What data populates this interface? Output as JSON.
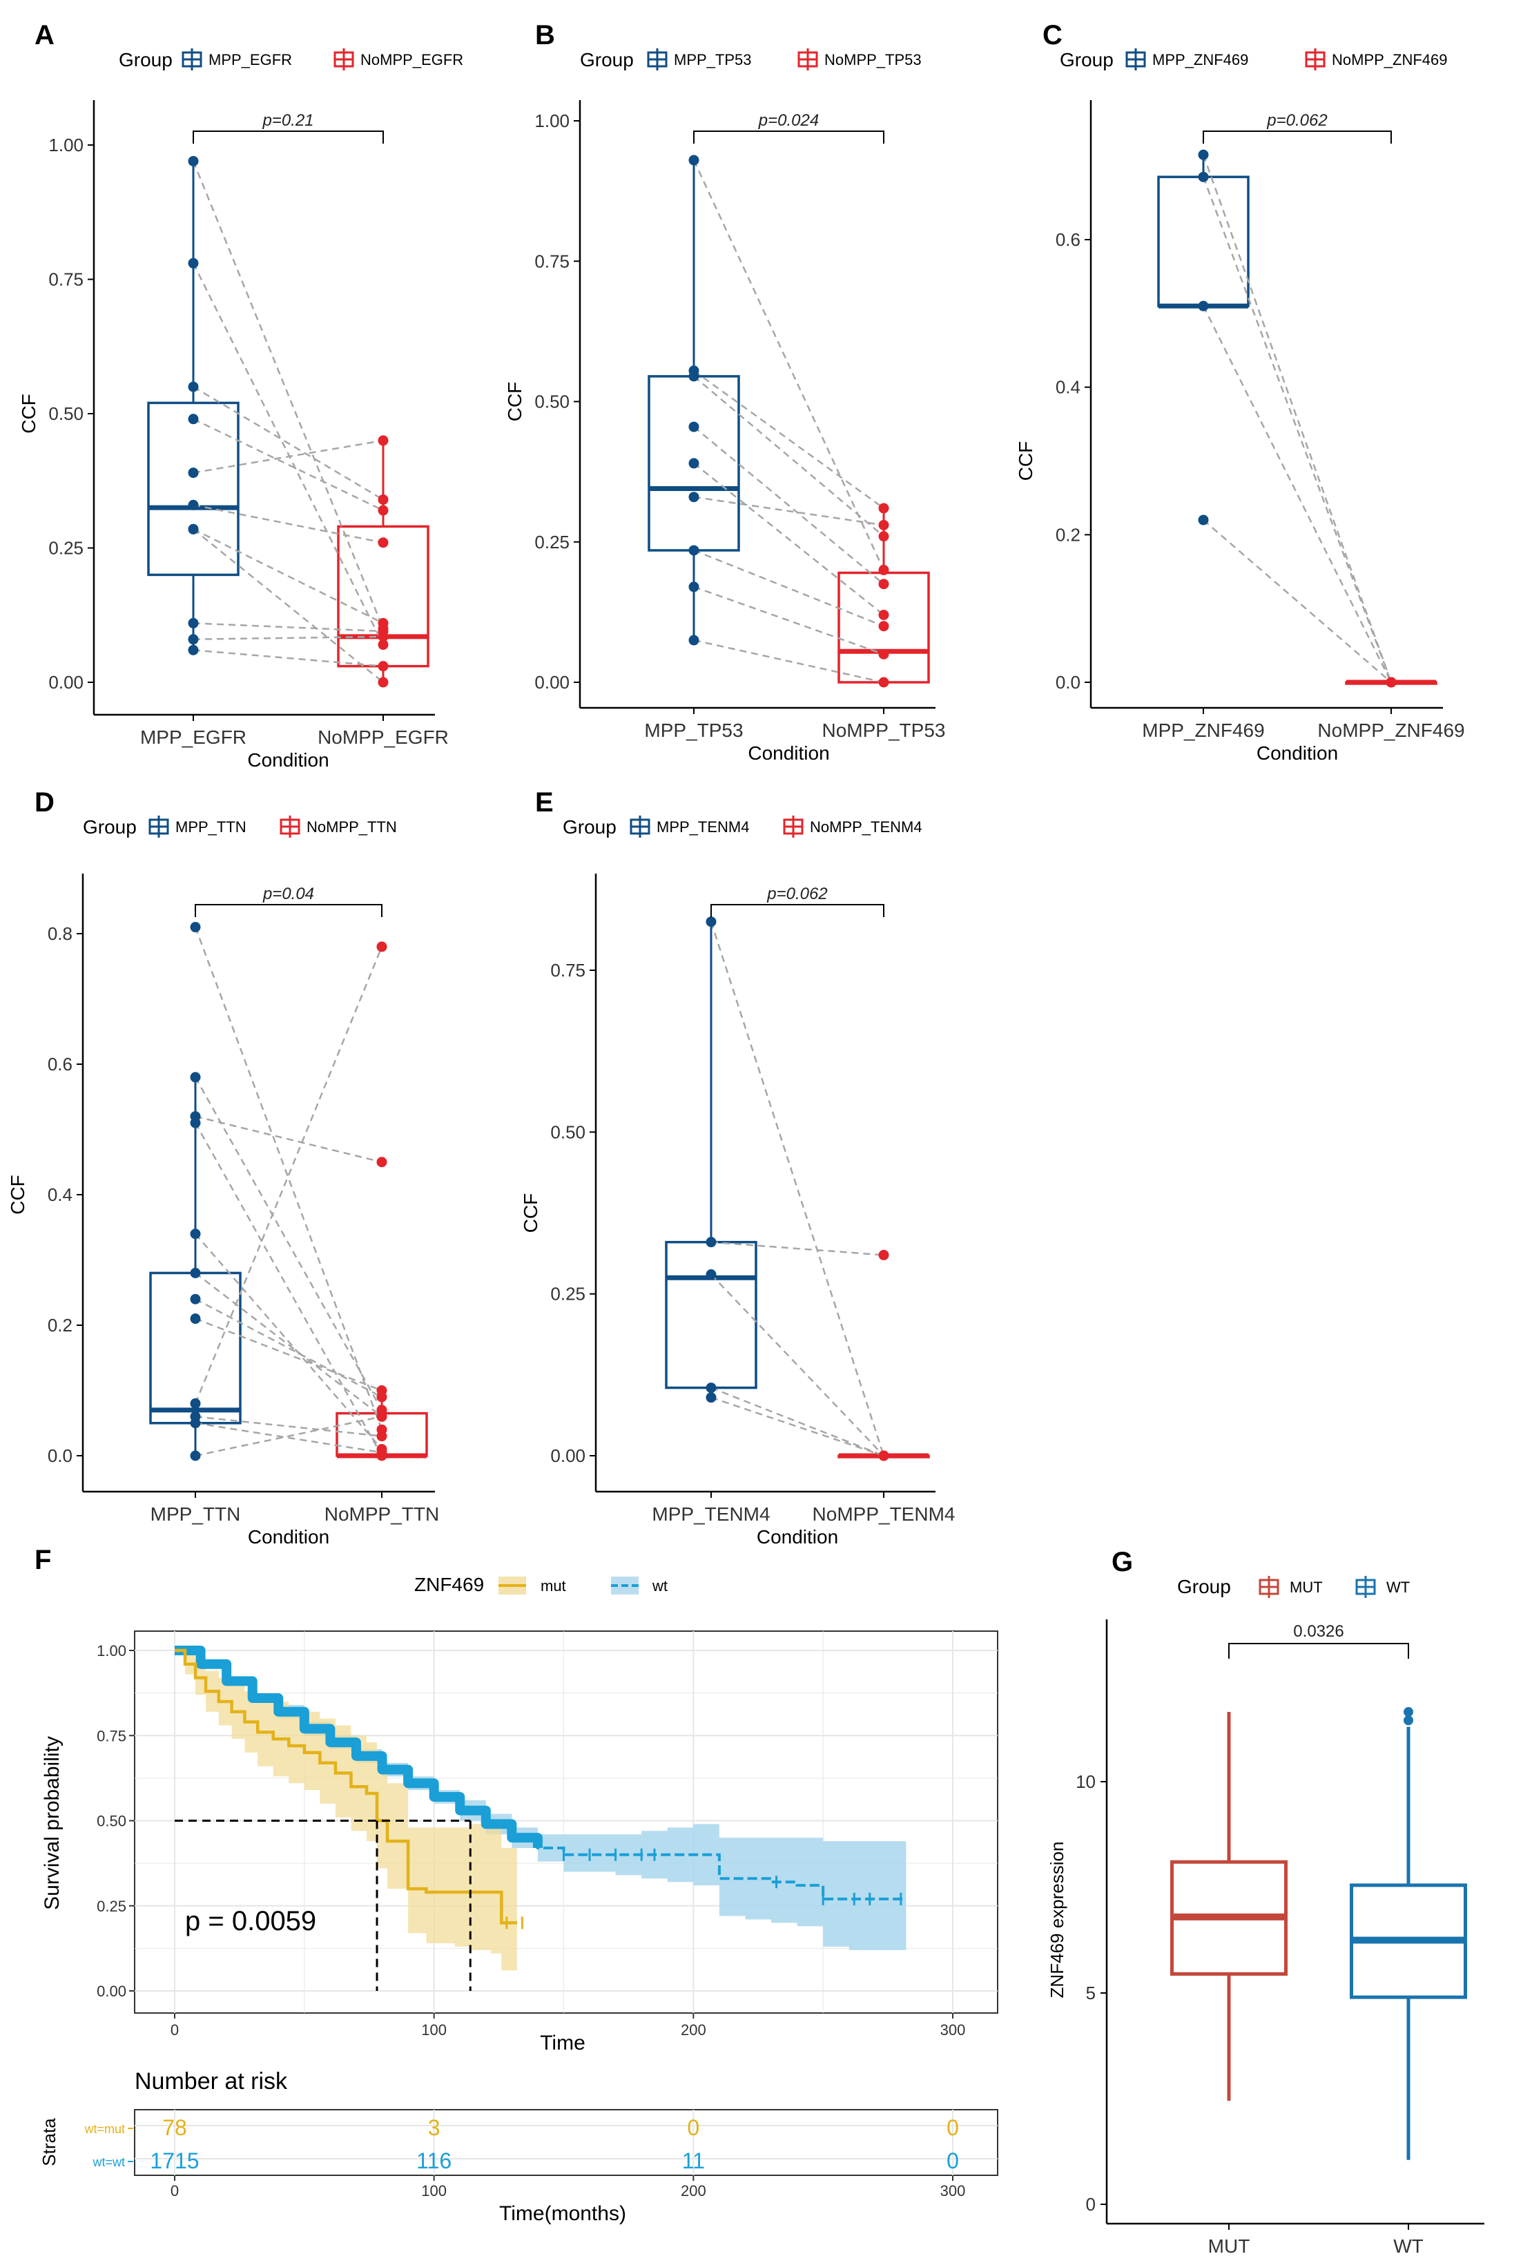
{
  "colors": {
    "mpp": "#0f4d84",
    "nompp": "#e3242b",
    "mut_km": "#e3b21a",
    "mut_km_band": "#f1dc9a",
    "wt_km": "#1a9fd7",
    "wt_km_band": "#a9d6ec",
    "mut_box": "#c4473b",
    "wt_box": "#1a74ad",
    "dash": "#a6a6a6",
    "panel_bg": "#ebebeb"
  },
  "chart_data": [
    {
      "panel": "A",
      "type": "box-paired",
      "legend_title": "Group",
      "legend": [
        "MPP_EGFR",
        "NoMPP_EGFR"
      ],
      "categories": [
        "MPP_EGFR",
        "NoMPP_EGFR"
      ],
      "xlabel": "Condition",
      "ylabel": "CCF",
      "ylim": [
        0,
        1.05
      ],
      "yticks": [
        "0.00",
        "0.25",
        "0.50",
        "0.75",
        "1.00"
      ],
      "pvalue": "p=0.21",
      "boxes": [
        {
          "q1": 0.2,
          "median": 0.325,
          "q3": 0.52,
          "lo": 0.06,
          "hi": 0.97
        },
        {
          "q1": 0.03,
          "median": 0.085,
          "q3": 0.29,
          "lo": 0.0,
          "hi": 0.45
        }
      ],
      "pairs": [
        [
          0.97,
          0.1
        ],
        [
          0.78,
          0.07
        ],
        [
          0.55,
          0.34
        ],
        [
          0.49,
          0.32
        ],
        [
          0.39,
          0.45
        ],
        [
          0.33,
          0.26
        ],
        [
          0.285,
          0.11
        ],
        [
          0.285,
          0.0
        ],
        [
          0.11,
          0.095
        ],
        [
          0.08,
          0.085
        ],
        [
          0.06,
          0.03
        ]
      ]
    },
    {
      "panel": "B",
      "type": "box-paired",
      "legend_title": "Group",
      "legend": [
        "MPP_TP53",
        "NoMPP_TP53"
      ],
      "categories": [
        "MPP_TP53",
        "NoMPP_TP53"
      ],
      "xlabel": "Condition",
      "ylabel": "CCF",
      "ylim": [
        0,
        1.05
      ],
      "yticks": [
        "0.00",
        "0.25",
        "0.50",
        "0.75",
        "1.00"
      ],
      "pvalue": "p=0.024",
      "boxes": [
        {
          "q1": 0.235,
          "median": 0.345,
          "q3": 0.545,
          "lo": 0.075,
          "hi": 0.93
        },
        {
          "q1": 0.0,
          "median": 0.055,
          "q3": 0.195,
          "lo": 0.0,
          "hi": 0.31
        }
      ],
      "pairs": [
        [
          0.93,
          0.2
        ],
        [
          0.555,
          0.31
        ],
        [
          0.545,
          0.26
        ],
        [
          0.455,
          0.175
        ],
        [
          0.39,
          0.12
        ],
        [
          0.33,
          0.28
        ],
        [
          0.235,
          0.1
        ],
        [
          0.17,
          0.05
        ],
        [
          0.075,
          0.0
        ]
      ]
    },
    {
      "panel": "C",
      "type": "box-paired",
      "legend_title": "Group",
      "legend": [
        "MPP_ZNF469",
        "NoMPP_ZNF469"
      ],
      "categories": [
        "MPP_ZNF469",
        "NoMPP_ZNF469"
      ],
      "xlabel": "Condition",
      "ylabel": "CCF",
      "ylim": [
        0,
        0.78
      ],
      "yticks": [
        "0.0",
        "0.2",
        "0.4",
        "0.6"
      ],
      "pvalue": "p=0.062",
      "boxes": [
        {
          "q1": 0.51,
          "median": 0.51,
          "q3": 0.685,
          "lo": 0.51,
          "hi": 0.71
        },
        {
          "q1": 0.0,
          "median": 0.0,
          "q3": 0.0,
          "lo": 0.0,
          "hi": 0.0
        }
      ],
      "pairs": [
        [
          0.715,
          0.0
        ],
        [
          0.685,
          0.0
        ],
        [
          0.51,
          0.0
        ],
        [
          0.22,
          0.0
        ]
      ]
    },
    {
      "panel": "D",
      "type": "box-paired",
      "legend_title": "Group",
      "legend": [
        "MPP_TTN",
        "NoMPP_TTN"
      ],
      "categories": [
        "MPP_TTN",
        "NoMPP_TTN"
      ],
      "xlabel": "Condition",
      "ylabel": "CCF",
      "ylim": [
        0,
        0.86
      ],
      "yticks": [
        "0.0",
        "0.2",
        "0.4",
        "0.6",
        "0.8"
      ],
      "pvalue": "p=0.04",
      "boxes": [
        {
          "q1": 0.05,
          "median": 0.07,
          "q3": 0.28,
          "lo": 0.0,
          "hi": 0.58
        },
        {
          "q1": 0.0,
          "median": 0.0,
          "q3": 0.065,
          "lo": 0.0,
          "hi": 0.1
        }
      ],
      "pairs": [
        [
          0.81,
          0.04
        ],
        [
          0.58,
          0.07
        ],
        [
          0.52,
          0.45
        ],
        [
          0.51,
          0.0
        ],
        [
          0.34,
          0.01
        ],
        [
          0.28,
          0.06
        ],
        [
          0.24,
          0.09
        ],
        [
          0.21,
          0.1
        ],
        [
          0.08,
          0.78
        ],
        [
          0.06,
          0.03
        ],
        [
          0.05,
          0.005
        ],
        [
          0.0,
          0.06
        ]
      ]
    },
    {
      "panel": "E",
      "type": "box-paired",
      "legend_title": "Group",
      "legend": [
        "MPP_TENM4",
        "NoMPP_TENM4"
      ],
      "categories": [
        "MPP_TENM4",
        "NoMPP_TENM4"
      ],
      "xlabel": "Condition",
      "ylabel": "CCF",
      "ylim": [
        0,
        0.86
      ],
      "yticks": [
        "0.00",
        "0.25",
        "0.50",
        "0.75"
      ],
      "pvalue": "p=0.062",
      "boxes": [
        {
          "q1": 0.105,
          "median": 0.275,
          "q3": 0.33,
          "lo": 0.09,
          "hi": 0.83
        },
        {
          "q1": 0.0,
          "median": 0.0,
          "q3": 0.0,
          "lo": 0.0,
          "hi": 0.0
        }
      ],
      "pairs": [
        [
          0.825,
          0.0
        ],
        [
          0.33,
          0.31
        ],
        [
          0.28,
          0.0
        ],
        [
          0.105,
          0.0
        ],
        [
          0.09,
          0.0
        ]
      ]
    },
    {
      "panel": "F",
      "type": "kaplan-meier",
      "legend_title": "ZNF469",
      "legend": [
        "mut",
        "wt"
      ],
      "xlabel": "Time",
      "ylabel": "Survival probability",
      "xlim": [
        -15,
        315
      ],
      "ylim": [
        -0.02,
        1.05
      ],
      "xticks": [
        "0",
        "100",
        "200",
        "300"
      ],
      "yticks": [
        "0.00",
        "0.25",
        "0.50",
        "0.75",
        "1.00"
      ],
      "pvalue": "p = 0.0059",
      "series": [
        {
          "name": "mut",
          "x": [
            0,
            4,
            8,
            12,
            17,
            22,
            27,
            32,
            38,
            44,
            50,
            56,
            62,
            68,
            74,
            78,
            82,
            90,
            97,
            108,
            114,
            122,
            126,
            132
          ],
          "y": [
            1.0,
            0.96,
            0.92,
            0.88,
            0.85,
            0.82,
            0.79,
            0.76,
            0.74,
            0.72,
            0.7,
            0.67,
            0.64,
            0.6,
            0.58,
            0.5,
            0.44,
            0.3,
            0.29,
            0.29,
            0.29,
            0.29,
            0.2,
            0.2
          ],
          "lower": [
            1.0,
            0.93,
            0.87,
            0.82,
            0.78,
            0.74,
            0.7,
            0.66,
            0.63,
            0.61,
            0.59,
            0.55,
            0.51,
            0.47,
            0.44,
            0.36,
            0.3,
            0.17,
            0.14,
            0.13,
            0.12,
            0.11,
            0.06,
            0.06
          ],
          "upper": [
            1.0,
            0.99,
            0.97,
            0.94,
            0.92,
            0.9,
            0.88,
            0.86,
            0.85,
            0.83,
            0.82,
            0.8,
            0.78,
            0.75,
            0.73,
            0.66,
            0.61,
            0.48,
            0.48,
            0.48,
            0.49,
            0.5,
            0.42,
            0.42
          ]
        },
        {
          "name": "wt",
          "x": [
            0,
            10,
            20,
            30,
            40,
            50,
            60,
            70,
            80,
            90,
            100,
            110,
            120,
            130,
            140,
            150,
            160,
            170,
            180,
            190,
            200,
            210,
            220,
            230,
            240,
            250,
            260,
            270,
            282
          ],
          "y": [
            1.0,
            0.96,
            0.91,
            0.86,
            0.82,
            0.77,
            0.73,
            0.69,
            0.65,
            0.61,
            0.57,
            0.53,
            0.49,
            0.45,
            0.42,
            0.4,
            0.4,
            0.4,
            0.4,
            0.4,
            0.4,
            0.33,
            0.33,
            0.32,
            0.31,
            0.27,
            0.27,
            0.27,
            0.27
          ],
          "lower": [
            1.0,
            0.95,
            0.9,
            0.85,
            0.8,
            0.75,
            0.71,
            0.67,
            0.63,
            0.59,
            0.55,
            0.5,
            0.46,
            0.42,
            0.38,
            0.35,
            0.35,
            0.34,
            0.33,
            0.32,
            0.31,
            0.22,
            0.21,
            0.2,
            0.19,
            0.13,
            0.12,
            0.12,
            0.12
          ],
          "upper": [
            1.0,
            0.97,
            0.92,
            0.87,
            0.84,
            0.79,
            0.75,
            0.71,
            0.67,
            0.63,
            0.59,
            0.56,
            0.52,
            0.48,
            0.46,
            0.46,
            0.46,
            0.46,
            0.47,
            0.48,
            0.49,
            0.45,
            0.45,
            0.45,
            0.45,
            0.44,
            0.44,
            0.44,
            0.44
          ]
        }
      ],
      "median_survival": [
        {
          "name": "mut",
          "time": 78
        },
        {
          "name": "wt",
          "time": 114
        }
      ],
      "risk_table": {
        "title": "Number at risk",
        "ylabel": "Strata",
        "xlabel": "Time(months)",
        "times": [
          "0",
          "100",
          "200",
          "300"
        ],
        "rows": [
          {
            "label": "wt=mut",
            "counts": [
              "78",
              "3",
              "0",
              "0"
            ]
          },
          {
            "label": "wt=wt",
            "counts": [
              "1715",
              "116",
              "11",
              "0"
            ]
          }
        ]
      }
    },
    {
      "panel": "G",
      "type": "box",
      "legend_title": "Group",
      "legend": [
        "MUT",
        "WT"
      ],
      "categories": [
        "MUT",
        "WT"
      ],
      "xlabel": "",
      "ylabel": "ZNF469 expression",
      "ylim": [
        -0.3,
        13.6
      ],
      "yticks": [
        "0",
        "5",
        "10"
      ],
      "pvalue": "0.0326",
      "boxes": [
        {
          "q1": 5.45,
          "median": 6.8,
          "q3": 8.1,
          "lo": 2.45,
          "hi": 11.65
        },
        {
          "q1": 4.9,
          "median": 6.25,
          "q3": 7.55,
          "lo": 1.05,
          "hi": 11.3
        }
      ],
      "outliers": [
        [],
        [
          11.45,
          11.65
        ]
      ]
    }
  ]
}
